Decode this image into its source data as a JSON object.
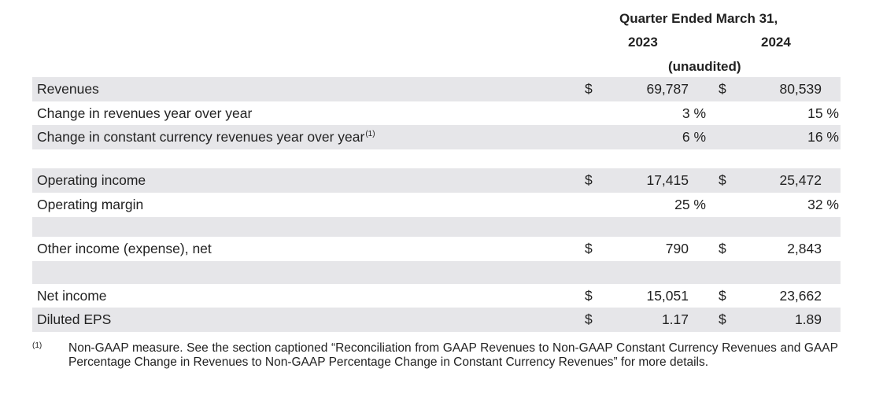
{
  "header": {
    "period": "Quarter Ended March 31,",
    "col1_year": "2023",
    "col2_year": "2024",
    "audit_note": "(unaudited)"
  },
  "rows": [
    {
      "label": "Revenues",
      "sup": "",
      "d1": "$",
      "v1": "69,787",
      "d2": "$",
      "v2": "80,539"
    },
    {
      "label": "Change in revenues year over year",
      "sup": "",
      "v1": "3 %",
      "v2": "15 %"
    },
    {
      "label": "Change in constant currency revenues year over year",
      "sup": "(1)",
      "v1": "6 %",
      "v2": "16 %"
    },
    {
      "label": "Operating income",
      "sup": "",
      "d1": "$",
      "v1": "17,415",
      "d2": "$",
      "v2": "25,472"
    },
    {
      "label": "Operating margin",
      "sup": "",
      "v1": "25 %",
      "v2": "32 %"
    },
    {
      "label": "Other income (expense), net",
      "sup": "",
      "d1": "$",
      "v1": "790",
      "d2": "$",
      "v2": "2,843"
    },
    {
      "label": "Net income",
      "sup": "",
      "d1": "$",
      "v1": "15,051",
      "d2": "$",
      "v2": "23,662"
    },
    {
      "label": "Diluted EPS",
      "sup": "",
      "d1": "$",
      "v1": "1.17",
      "d2": "$",
      "v2": "1.89"
    }
  ],
  "footnote": {
    "marker": "(1)",
    "text": "Non-GAAP measure. See the section captioned “Reconciliation from GAAP Revenues to Non-GAAP Constant Currency Revenues and GAAP Percentage Change in Revenues to Non-GAAP Percentage Change in Constant Currency Revenues” for more details."
  },
  "colors": {
    "row_shade": "#e6e6e9",
    "text": "#222222"
  }
}
